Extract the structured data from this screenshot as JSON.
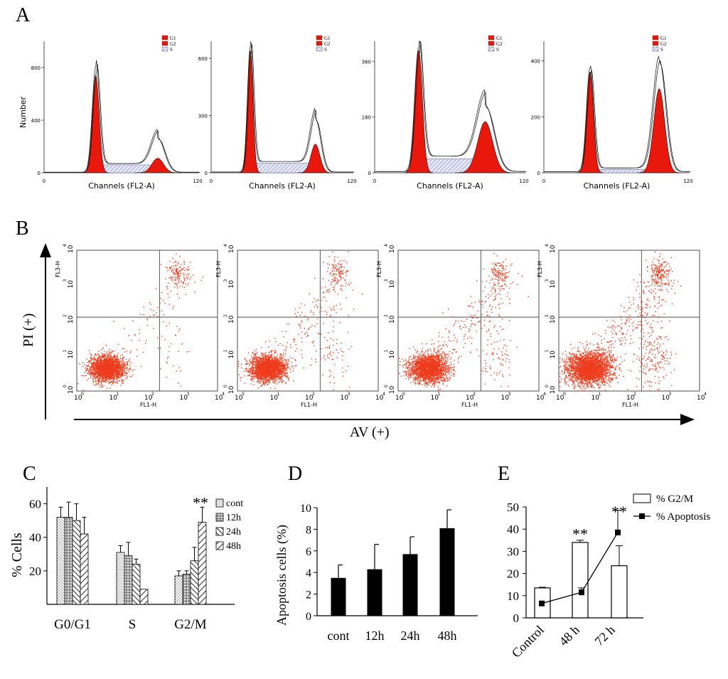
{
  "panels": {
    "A": "A",
    "B": "B",
    "C": "C",
    "D": "D",
    "E": "E"
  },
  "colors": {
    "g1": "#e8180c",
    "g2": "#e8180c",
    "s": "#cfd3ec",
    "scatter": "#ee3b1c",
    "bar_black": "#000000",
    "axis": "#000000"
  },
  "chart_data": [
    {
      "id": "A",
      "type": "area",
      "title": "A",
      "xlabel": "Channels (FL2-A)",
      "ylabel": "Number",
      "legend": [
        "G1",
        "G2",
        "S"
      ],
      "histograms": [
        {
          "xlim": [
            0,
            120
          ],
          "yticks": [
            "0",
            "400",
            "800"
          ],
          "ylim": [
            0,
            1000
          ],
          "tick_vals": [
            0,
            400,
            800
          ],
          "g1_pos": 40,
          "g1_height": 800,
          "g1_fill": 740,
          "g1_width": 2.6,
          "g2_pos": 88,
          "g2_height": 260,
          "g2_fill": 110,
          "g2_width": 4.5,
          "s_level": 60
        },
        {
          "xlim": [
            0,
            120
          ],
          "yticks": [
            "0",
            "300",
            "600"
          ],
          "ylim": [
            0,
            690
          ],
          "tick_vals": [
            0,
            300,
            600
          ],
          "g1_pos": 33,
          "g1_height": 655,
          "g1_fill": 640,
          "g1_width": 2.3,
          "g2_pos": 88,
          "g2_height": 280,
          "g2_fill": 150,
          "g2_width": 3.8,
          "s_level": 50
        },
        {
          "xlim": [
            0,
            120
          ],
          "yticks": [
            "0",
            "180",
            "360"
          ],
          "ylim": [
            0,
            425
          ],
          "tick_vals": [
            0,
            180,
            360
          ],
          "g1_pos": 35,
          "g1_height": 400,
          "g1_fill": 395,
          "g1_width": 3.0,
          "g2_pos": 88,
          "g2_height": 215,
          "g2_fill": 165,
          "g2_width": 6.0,
          "s_level": 45
        },
        {
          "xlim": [
            0,
            120
          ],
          "yticks": [
            "0",
            "200",
            "400"
          ],
          "ylim": [
            0,
            470
          ],
          "tick_vals": [
            0,
            200,
            400
          ],
          "g1_pos": 38,
          "g1_height": 370,
          "g1_fill": 360,
          "g1_width": 2.8,
          "g2_pos": 95,
          "g2_height": 400,
          "g2_fill": 300,
          "g2_width": 4.5,
          "s_level": 12
        }
      ]
    },
    {
      "id": "B",
      "type": "scatter",
      "title": "B",
      "xlabel_small": "FL1-H",
      "ylabel_small": "FL3-H",
      "xlabel_big": "AV (+)",
      "ylabel_big": "PI (+)",
      "decades": [
        "0",
        "1",
        "2",
        "3",
        "4"
      ],
      "axis_base": "10",
      "plots": [
        {
          "n_main": 2200,
          "n_apop": 30,
          "n_late": 140,
          "n_diffuse": 90,
          "spread": 0.55
        },
        {
          "n_main": 2200,
          "n_apop": 70,
          "n_late": 110,
          "n_diffuse": 200,
          "spread": 0.55
        },
        {
          "n_main": 2200,
          "n_apop": 90,
          "n_late": 120,
          "n_diffuse": 230,
          "spread": 0.6
        },
        {
          "n_main": 2600,
          "n_apop": 200,
          "n_late": 180,
          "n_diffuse": 320,
          "spread": 0.7
        }
      ]
    },
    {
      "id": "C",
      "type": "bar",
      "title": "C",
      "ylabel": "% Cells",
      "categories": [
        "G0/G1",
        "S",
        "G2/M"
      ],
      "ylim": [
        0,
        70
      ],
      "yticks": [
        "20",
        "40",
        "60"
      ],
      "ytick_vals": [
        20,
        40,
        60
      ],
      "series": [
        {
          "name": "cont",
          "values": [
            52,
            31,
            17
          ],
          "errors": [
            6,
            4,
            3
          ]
        },
        {
          "name": "12h",
          "values": [
            52,
            29,
            18
          ],
          "errors": [
            9,
            8,
            2
          ]
        },
        {
          "name": "24h",
          "values": [
            50,
            24,
            26
          ],
          "errors": [
            10,
            3,
            8
          ]
        },
        {
          "name": "48h",
          "values": [
            42,
            9,
            49
          ],
          "errors": [
            10,
            0,
            9
          ]
        }
      ],
      "annotation": "**"
    },
    {
      "id": "D",
      "type": "bar",
      "title": "D",
      "ylabel": "Apoptosis cells (%)",
      "categories": [
        "cont",
        "12h",
        "24h",
        "48h"
      ],
      "values": [
        3.5,
        4.3,
        5.7,
        8.1
      ],
      "errors": [
        1.2,
        2.3,
        1.6,
        1.7
      ],
      "ylim": [
        0,
        10
      ],
      "yticks": [
        "0",
        "2",
        "4",
        "6",
        "8",
        "10"
      ]
    },
    {
      "id": "E",
      "type": "bar",
      "title": "E",
      "categories": [
        "Control",
        "48 h",
        "72 h"
      ],
      "ylim": [
        0,
        50
      ],
      "yticks": [
        "0",
        "10",
        "20",
        "30",
        "40",
        "50"
      ],
      "series": [
        {
          "name": "% G2/M",
          "kind": "bar",
          "values": [
            13.5,
            34,
            23.5
          ],
          "errors": [
            0.3,
            1,
            9
          ]
        },
        {
          "name": "% Apoptosis",
          "kind": "line",
          "values": [
            6.5,
            11.5,
            38.5
          ],
          "errors": [
            0,
            2,
            10
          ]
        }
      ],
      "annotations": [
        "**",
        "**"
      ]
    }
  ]
}
